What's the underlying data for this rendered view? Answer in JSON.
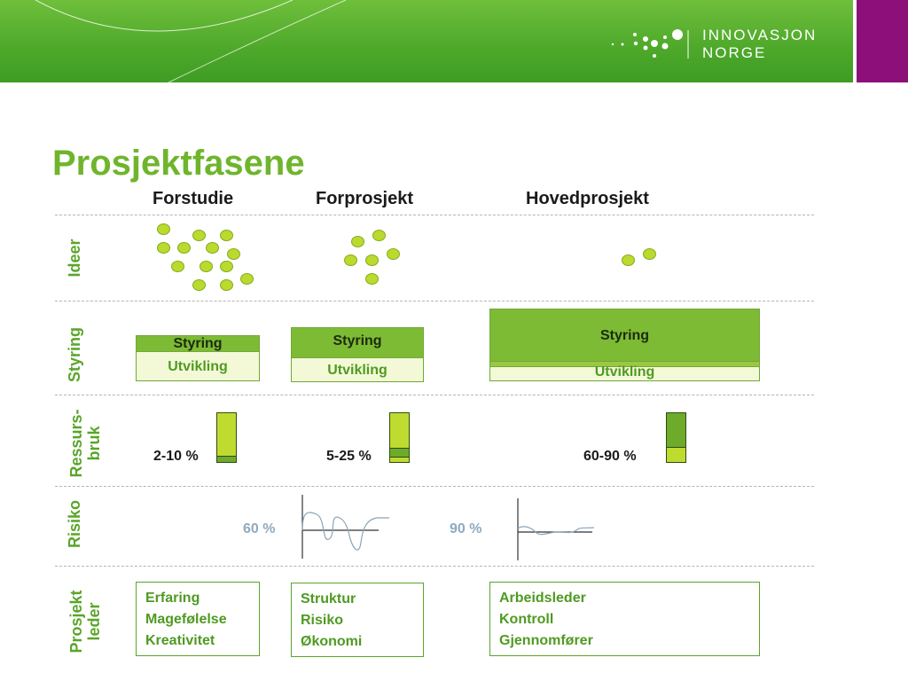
{
  "brand": {
    "logo_line1": "INNOVASJON",
    "logo_line2": "NORGE",
    "green": "#4da82a",
    "purple": "#8c0f7a"
  },
  "title": "Prosjektfasene",
  "phases": [
    "Forstudie",
    "Forprosjekt",
    "Hovedprosjekt"
  ],
  "rows": {
    "ideer": "Ideer",
    "styring": "Styring",
    "ressurs_line1": "Ressurs-",
    "ressurs_line2": "bruk",
    "risiko": "Risiko",
    "leder_line1": "Prosjekt",
    "leder_line2": "leder"
  },
  "styring": [
    {
      "top": "Styring",
      "bottom": "Utvikling"
    },
    {
      "top": "Styring",
      "bottom": "Utvikling"
    },
    {
      "top": "Styring",
      "bottom": "Utvikling"
    }
  ],
  "ressursbruk": [
    "2-10 %",
    "5-25 %",
    "60-90 %"
  ],
  "risiko": [
    "60 %",
    "90 %"
  ],
  "prosjektleder": [
    [
      "Erfaring",
      "Magefølelse",
      "Kreativitet"
    ],
    [
      "Struktur",
      "Risiko",
      "Økonomi"
    ],
    [
      "Arbeidsleder",
      "Kontroll",
      "Gjennomfører"
    ]
  ]
}
